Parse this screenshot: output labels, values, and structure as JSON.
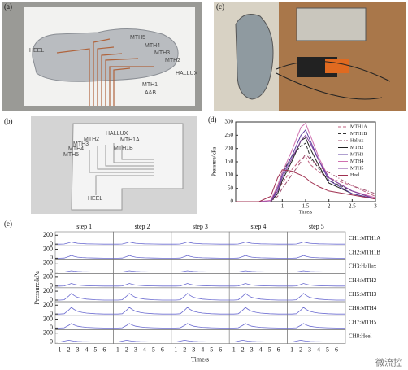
{
  "panel_labels": [
    "(a)",
    "(b)",
    "(c)",
    "(d)",
    "(e)"
  ],
  "photo_a": {
    "labels": [
      "HEEL",
      "MTH5",
      "MTH4",
      "MTH3",
      "MTH2",
      "HALLUX",
      "MTH1",
      "A&B"
    ]
  },
  "diagram_b": {
    "labels": [
      "HALLUX",
      "MTH2",
      "MTH1A",
      "MTH3",
      "MTH1B",
      "MTH4",
      "MTH5",
      "HEEL"
    ]
  },
  "watermark": "微流控",
  "chart_data": [
    {
      "type": "line",
      "x_label": "Time/s",
      "y_label": "Pressure/kPa",
      "x": [
        0,
        0.5,
        0.75,
        0.9,
        1,
        1.2,
        1.4,
        1.5,
        1.6,
        1.8,
        2,
        2.5,
        3
      ],
      "xlim": [
        0,
        3
      ],
      "ylim": [
        0,
        300
      ],
      "xticks": [
        1,
        1.5,
        2,
        2.5,
        3
      ],
      "yticks": [
        0,
        50,
        100,
        150,
        200,
        250,
        300
      ],
      "legend": "upper right",
      "series": [
        {
          "name": "MTH1A",
          "color": "#c06080",
          "style": "dashed",
          "values": [
            0,
            0,
            0,
            40,
            70,
            120,
            160,
            170,
            140,
            110,
            90,
            60,
            20
          ]
        },
        {
          "name": "MTH1B",
          "color": "#333333",
          "style": "dashed",
          "values": [
            0,
            0,
            0,
            60,
            110,
            170,
            210,
            220,
            170,
            120,
            80,
            40,
            10
          ]
        },
        {
          "name": "Hallux",
          "color": "#a05070",
          "style": "dashdot",
          "values": [
            0,
            0,
            0,
            20,
            50,
            100,
            150,
            180,
            160,
            130,
            110,
            60,
            30
          ]
        },
        {
          "name": "MTH2",
          "color": "#222222",
          "style": "solid",
          "values": [
            0,
            0,
            0,
            30,
            80,
            150,
            230,
            240,
            200,
            130,
            70,
            30,
            10
          ]
        },
        {
          "name": "MTH3",
          "color": "#6040a0",
          "style": "solid",
          "values": [
            0,
            0,
            0,
            50,
            100,
            170,
            250,
            270,
            230,
            150,
            80,
            30,
            10
          ]
        },
        {
          "name": "MTH4",
          "color": "#d070b0",
          "style": "solid",
          "values": [
            0,
            0,
            5,
            60,
            110,
            190,
            280,
            295,
            250,
            160,
            90,
            40,
            15
          ]
        },
        {
          "name": "MTH5",
          "color": "#8040a0",
          "style": "solid",
          "values": [
            0,
            0,
            0,
            40,
            90,
            160,
            230,
            250,
            220,
            150,
            90,
            40,
            10
          ]
        },
        {
          "name": "Heel",
          "color": "#a03050",
          "style": "solid",
          "values": [
            0,
            0,
            20,
            90,
            120,
            115,
            100,
            90,
            75,
            55,
            40,
            25,
            10
          ]
        }
      ]
    },
    {
      "type": "line",
      "x_label": "Time/s",
      "y_label": "Pressure/kPa",
      "steps": [
        "step 1",
        "step 2",
        "step 3",
        "step 4",
        "step 5"
      ],
      "x": [
        0.5,
        1,
        1.5,
        2,
        2.3,
        2.6,
        3,
        3.5,
        4,
        5,
        6,
        7
      ],
      "xlim": [
        0.5,
        7
      ],
      "ylim": [
        0,
        260
      ],
      "xticks": [
        1,
        2,
        3,
        4,
        5,
        6
      ],
      "yticks": [
        0,
        200
      ],
      "series": [
        {
          "name": "CH1:MTH1A",
          "color": "#6a6ad0",
          "values": [
            0,
            0,
            3,
            30,
            50,
            35,
            20,
            12,
            8,
            3,
            0,
            0
          ]
        },
        {
          "name": "CH2:MTH1B",
          "color": "#6a6ad0",
          "values": [
            0,
            0,
            4,
            36,
            60,
            42,
            24,
            15,
            9,
            3,
            0,
            0
          ]
        },
        {
          "name": "CH3:Hallux",
          "color": "#6a6ad0",
          "values": [
            0,
            0,
            2,
            18,
            30,
            21,
            12,
            8,
            5,
            2,
            0,
            0
          ]
        },
        {
          "name": "CH4:MTH2",
          "color": "#6a6ad0",
          "values": [
            0,
            0,
            4,
            36,
            60,
            42,
            24,
            15,
            9,
            3,
            0,
            0
          ]
        },
        {
          "name": "CH5:MTH3",
          "color": "#6a6ad0",
          "values": [
            0,
            0,
            8,
            90,
            150,
            105,
            60,
            38,
            22,
            8,
            0,
            0
          ]
        },
        {
          "name": "CH6:MTH4",
          "color": "#6a6ad0",
          "values": [
            0,
            0,
            8,
            90,
            150,
            105,
            60,
            38,
            22,
            8,
            0,
            0
          ]
        },
        {
          "name": "CH7:MTH5",
          "color": "#6a6ad0",
          "values": [
            0,
            0,
            5,
            60,
            100,
            70,
            40,
            25,
            15,
            5,
            0,
            0
          ]
        },
        {
          "name": "CH8:Heel",
          "color": "#6a6ad0",
          "values": [
            0,
            0,
            20,
            40,
            30,
            20,
            12,
            8,
            5,
            2,
            0,
            0
          ]
        }
      ]
    }
  ]
}
